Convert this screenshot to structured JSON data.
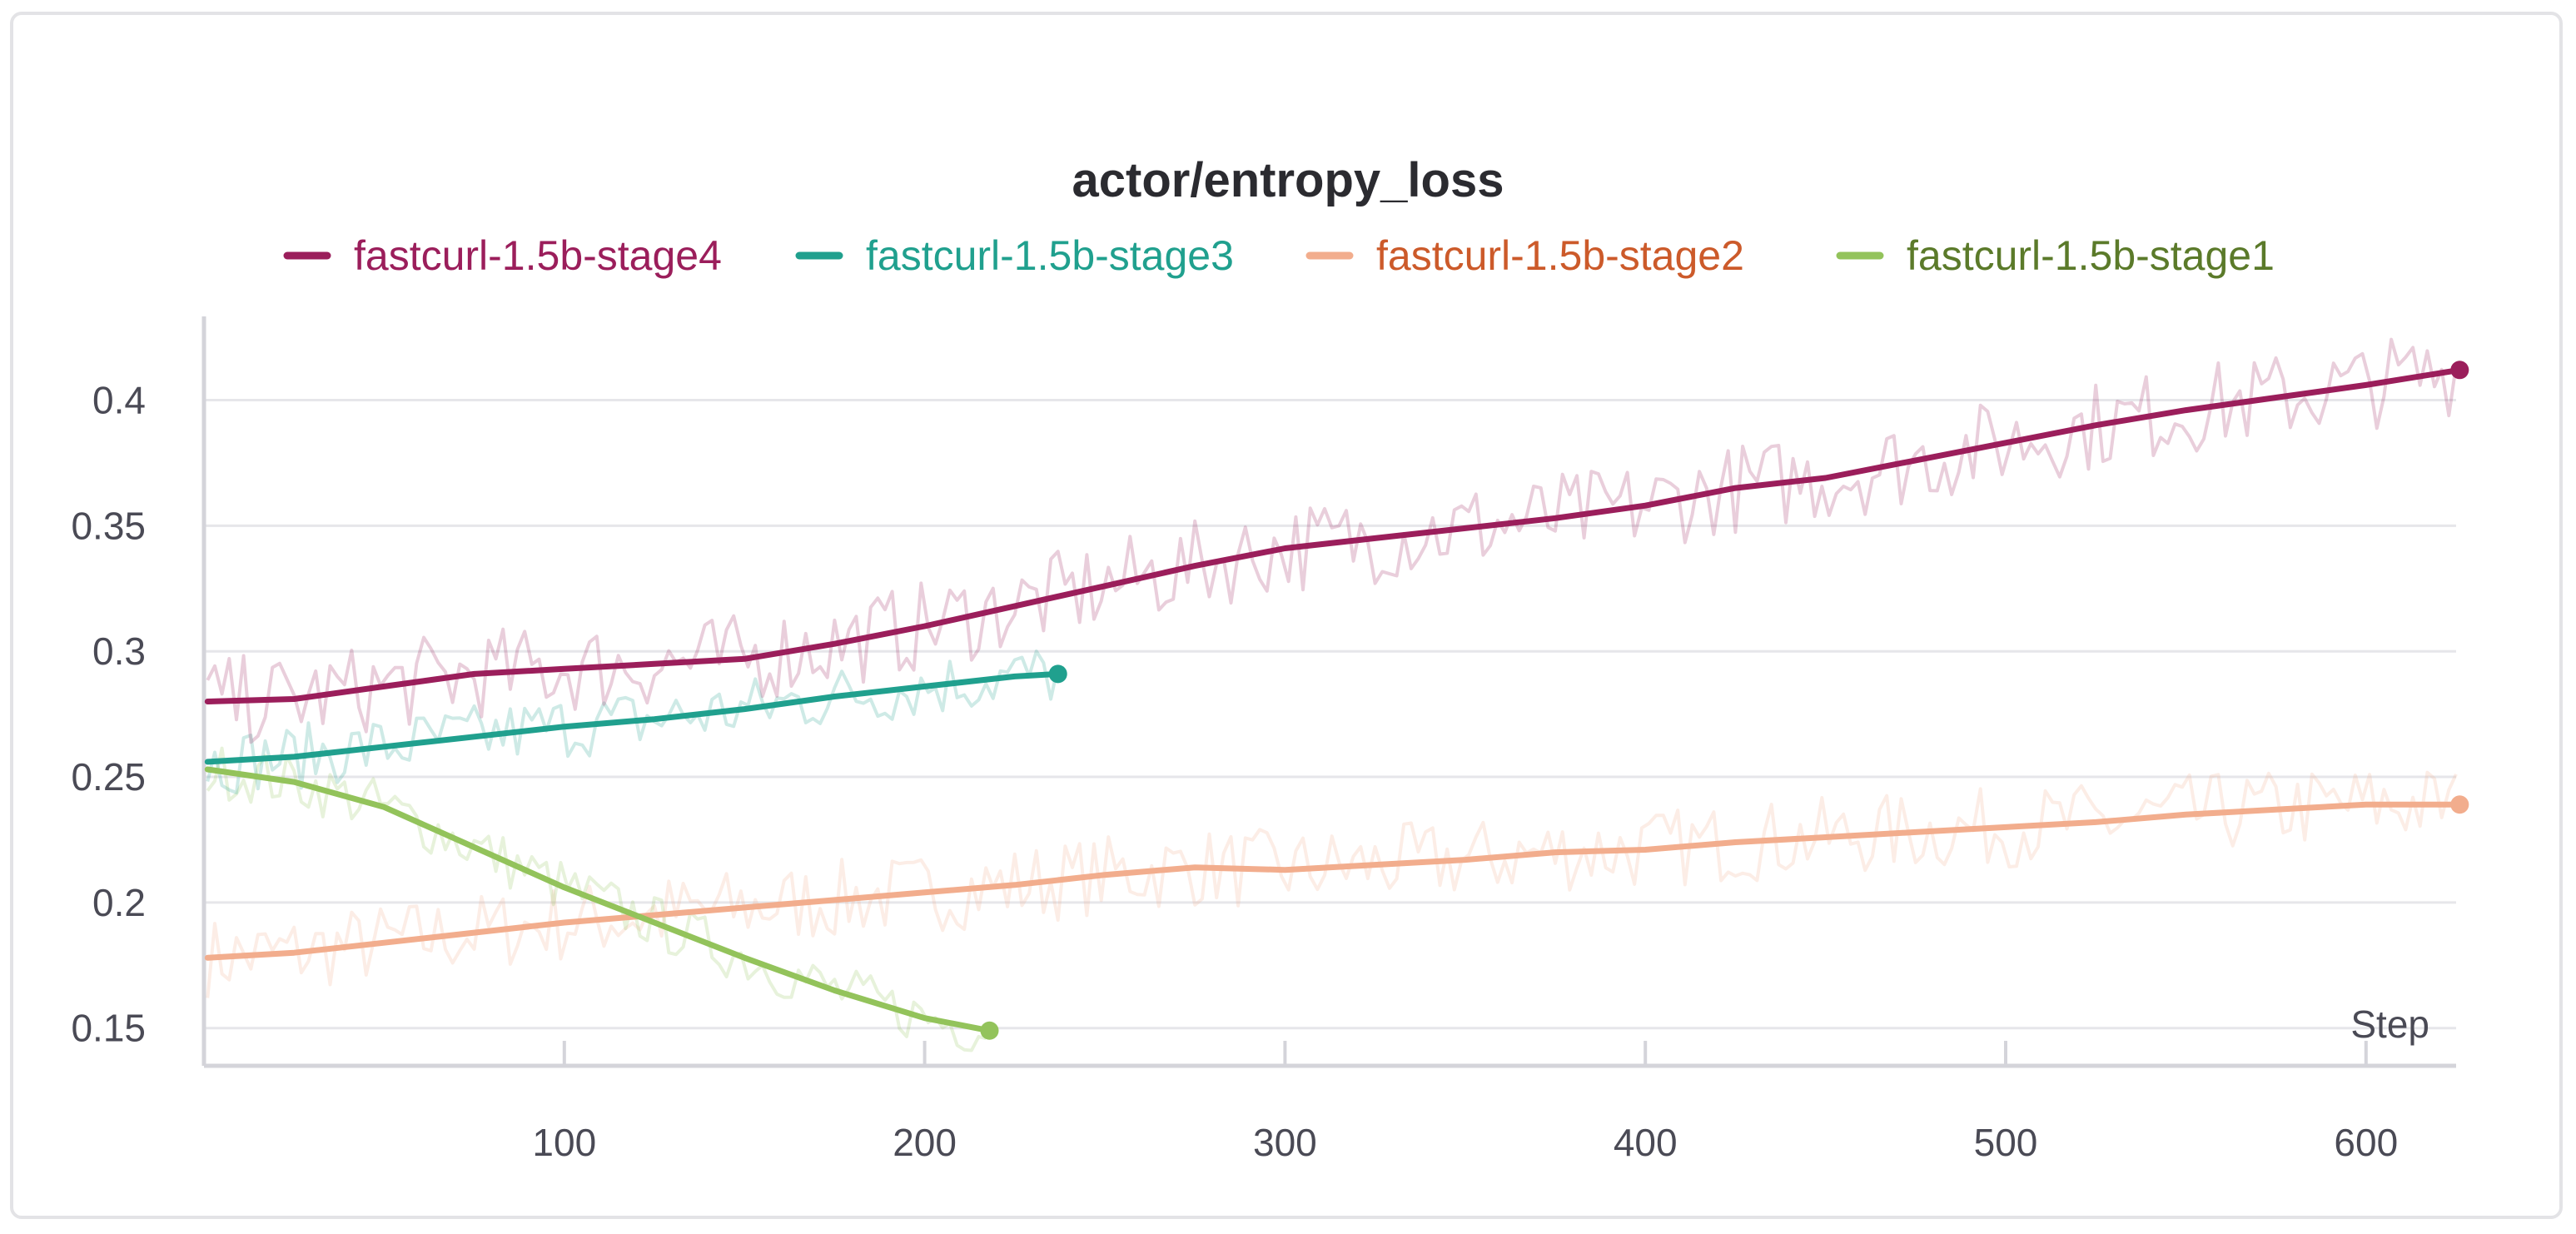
{
  "chart_data": {
    "type": "line",
    "title": "actor/entropy_loss",
    "xlabel": "Step",
    "ylabel": "",
    "xlim": [
      0,
      625
    ],
    "ylim": [
      0.135,
      0.43
    ],
    "x_ticks": [
      100,
      200,
      300,
      400,
      500,
      600
    ],
    "y_ticks": [
      0.15,
      0.2,
      0.25,
      0.3,
      0.35,
      0.4
    ],
    "y_tick_labels": [
      "0.15",
      "0.2",
      "0.25",
      "0.3",
      "0.35",
      "0.4"
    ],
    "grid": "horizontal",
    "legend_position": "top",
    "series": [
      {
        "name": "fastcurl-1.5b-stage4",
        "color": "#9b1e5b",
        "x": [
          1,
          25,
          50,
          75,
          100,
          125,
          150,
          175,
          200,
          225,
          250,
          275,
          300,
          325,
          350,
          375,
          400,
          425,
          450,
          475,
          500,
          525,
          550,
          575,
          600,
          626
        ],
        "values": [
          0.28,
          0.281,
          0.286,
          0.291,
          0.293,
          0.295,
          0.297,
          0.303,
          0.31,
          0.318,
          0.326,
          0.334,
          0.341,
          0.345,
          0.349,
          0.353,
          0.358,
          0.365,
          0.369,
          0.376,
          0.383,
          0.39,
          0.396,
          0.401,
          0.406,
          0.412
        ]
      },
      {
        "name": "fastcurl-1.5b-stage3",
        "color": "#20a08e",
        "x": [
          1,
          25,
          50,
          75,
          100,
          125,
          150,
          175,
          200,
          225,
          237
        ],
        "values": [
          0.256,
          0.258,
          0.262,
          0.266,
          0.27,
          0.273,
          0.277,
          0.282,
          0.286,
          0.29,
          0.291
        ]
      },
      {
        "name": "fastcurl-1.5b-stage2",
        "color": "#f2ad8d",
        "x": [
          1,
          25,
          50,
          75,
          100,
          125,
          150,
          175,
          200,
          225,
          250,
          275,
          300,
          325,
          350,
          375,
          400,
          425,
          450,
          475,
          500,
          525,
          550,
          575,
          600,
          626
        ],
        "values": [
          0.178,
          0.18,
          0.184,
          0.188,
          0.192,
          0.195,
          0.198,
          0.201,
          0.204,
          0.207,
          0.211,
          0.214,
          0.213,
          0.215,
          0.217,
          0.22,
          0.221,
          0.224,
          0.226,
          0.228,
          0.23,
          0.232,
          0.235,
          0.237,
          0.239,
          0.239
        ]
      },
      {
        "name": "fastcurl-1.5b-stage1",
        "color": "#93c35b",
        "x": [
          1,
          25,
          50,
          75,
          100,
          125,
          150,
          175,
          200,
          218
        ],
        "values": [
          0.253,
          0.248,
          0.238,
          0.222,
          0.206,
          0.192,
          0.178,
          0.165,
          0.154,
          0.149
        ]
      }
    ]
  },
  "legend_text_colors": [
    "#9b1e5b",
    "#20a08e",
    "#cc5a2a",
    "#5b7a2a"
  ]
}
